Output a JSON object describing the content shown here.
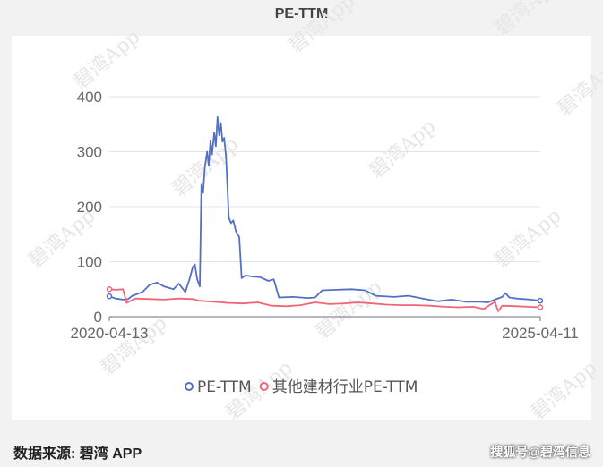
{
  "page": {
    "footer_source": "数据来源: 碧湾 APP",
    "watermark_corner": "搜狐号@碧湾信息",
    "watermark_text": "碧湾App"
  },
  "chart_data": {
    "type": "line",
    "title": "PE-TTM",
    "xlabel": "",
    "ylabel": "",
    "x_tick_labels": [
      "2020-04-13",
      "2025-04-11"
    ],
    "x_range": [
      "2020-04-13",
      "2025-04-11"
    ],
    "ylim": [
      0,
      400
    ],
    "y_ticks": [
      0,
      100,
      200,
      300,
      400
    ],
    "grid": true,
    "legend_position": "bottom",
    "series": [
      {
        "name": "PE-TTM",
        "color": "#5470c6",
        "points": [
          [
            "2020-04-13",
            37
          ],
          [
            "2020-05-10",
            33
          ],
          [
            "2020-06-10",
            31
          ],
          [
            "2020-07-01",
            32
          ],
          [
            "2020-07-20",
            38
          ],
          [
            "2020-09-01",
            45
          ],
          [
            "2020-10-01",
            58
          ],
          [
            "2020-11-01",
            62
          ],
          [
            "2020-12-01",
            55
          ],
          [
            "2021-01-10",
            50
          ],
          [
            "2021-02-01",
            60
          ],
          [
            "2021-03-01",
            45
          ],
          [
            "2021-03-20",
            70
          ],
          [
            "2021-04-01",
            90
          ],
          [
            "2021-04-10",
            95
          ],
          [
            "2021-04-20",
            68
          ],
          [
            "2021-05-01",
            55
          ],
          [
            "2021-05-08",
            240
          ],
          [
            "2021-05-15",
            225
          ],
          [
            "2021-05-22",
            270
          ],
          [
            "2021-06-01",
            300
          ],
          [
            "2021-06-08",
            275
          ],
          [
            "2021-06-15",
            320
          ],
          [
            "2021-06-22",
            295
          ],
          [
            "2021-07-01",
            335
          ],
          [
            "2021-07-08",
            310
          ],
          [
            "2021-07-15",
            363
          ],
          [
            "2021-07-22",
            330
          ],
          [
            "2021-07-29",
            352
          ],
          [
            "2021-08-05",
            318
          ],
          [
            "2021-08-12",
            325
          ],
          [
            "2021-08-20",
            290
          ],
          [
            "2021-09-01",
            180
          ],
          [
            "2021-09-10",
            170
          ],
          [
            "2021-09-20",
            175
          ],
          [
            "2021-10-01",
            155
          ],
          [
            "2021-10-15",
            145
          ],
          [
            "2021-10-25",
            70
          ],
          [
            "2021-11-10",
            75
          ],
          [
            "2021-12-10",
            73
          ],
          [
            "2022-01-10",
            72
          ],
          [
            "2022-02-15",
            65
          ],
          [
            "2022-03-10",
            68
          ],
          [
            "2022-04-01",
            35
          ],
          [
            "2022-06-01",
            36
          ],
          [
            "2022-08-01",
            34
          ],
          [
            "2022-09-01",
            35
          ],
          [
            "2022-10-01",
            48
          ],
          [
            "2022-12-01",
            49
          ],
          [
            "2023-02-01",
            50
          ],
          [
            "2023-04-01",
            48
          ],
          [
            "2023-05-15",
            38
          ],
          [
            "2023-08-01",
            36
          ],
          [
            "2023-10-01",
            38
          ],
          [
            "2023-12-01",
            33
          ],
          [
            "2024-02-01",
            28
          ],
          [
            "2024-04-01",
            31
          ],
          [
            "2024-06-01",
            27
          ],
          [
            "2024-08-01",
            27
          ],
          [
            "2024-09-01",
            26
          ],
          [
            "2024-10-01",
            31
          ],
          [
            "2024-11-01",
            36
          ],
          [
            "2024-11-15",
            43
          ],
          [
            "2024-12-01",
            35
          ],
          [
            "2025-01-01",
            33
          ],
          [
            "2025-02-01",
            32
          ],
          [
            "2025-03-01",
            31
          ],
          [
            "2025-04-11",
            29
          ]
        ]
      },
      {
        "name": "其他建材行业PE-TTM",
        "color": "#ee6677",
        "points": [
          [
            "2020-04-13",
            50
          ],
          [
            "2020-05-10",
            49
          ],
          [
            "2020-06-10",
            50
          ],
          [
            "2020-06-25",
            25
          ],
          [
            "2020-08-01",
            33
          ],
          [
            "2020-10-01",
            32
          ],
          [
            "2020-12-01",
            31
          ],
          [
            "2021-02-01",
            33
          ],
          [
            "2021-04-01",
            32
          ],
          [
            "2021-05-01",
            29
          ],
          [
            "2021-07-01",
            27
          ],
          [
            "2021-09-01",
            25
          ],
          [
            "2021-11-01",
            24
          ],
          [
            "2022-01-01",
            26
          ],
          [
            "2022-03-01",
            20
          ],
          [
            "2022-05-01",
            19
          ],
          [
            "2022-07-01",
            21
          ],
          [
            "2022-09-01",
            26
          ],
          [
            "2022-11-01",
            23
          ],
          [
            "2023-01-01",
            24
          ],
          [
            "2023-03-01",
            26
          ],
          [
            "2023-05-01",
            24
          ],
          [
            "2023-07-01",
            22
          ],
          [
            "2023-09-01",
            21
          ],
          [
            "2023-11-01",
            21
          ],
          [
            "2024-01-01",
            20
          ],
          [
            "2024-03-01",
            18
          ],
          [
            "2024-05-01",
            17
          ],
          [
            "2024-07-01",
            18
          ],
          [
            "2024-08-15",
            14
          ],
          [
            "2024-09-01",
            19
          ],
          [
            "2024-10-01",
            27
          ],
          [
            "2024-10-15",
            10
          ],
          [
            "2024-11-01",
            20
          ],
          [
            "2025-01-01",
            19
          ],
          [
            "2025-04-11",
            17
          ]
        ]
      }
    ]
  }
}
